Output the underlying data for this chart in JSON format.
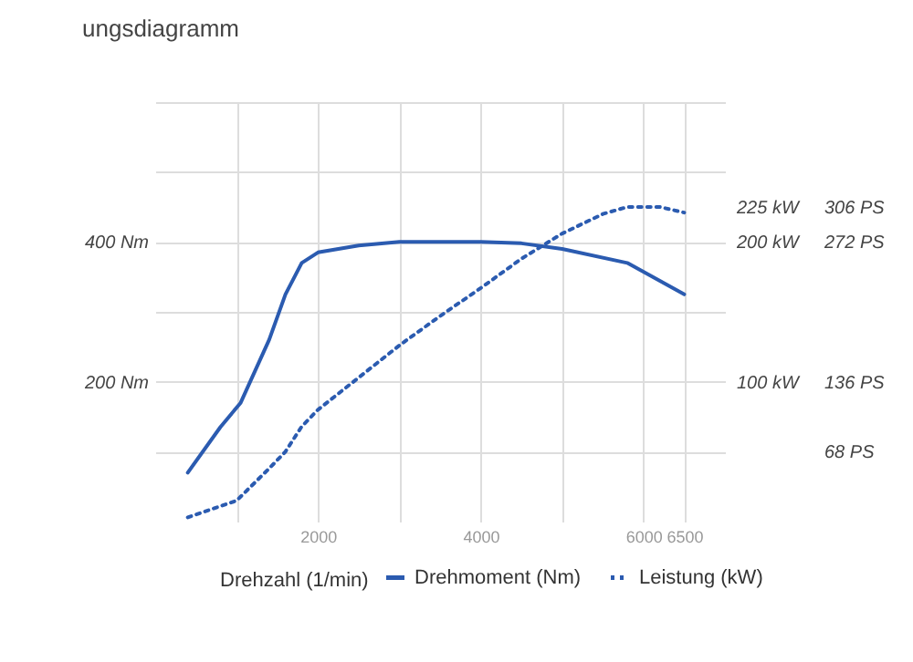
{
  "chart_data": {
    "type": "line",
    "title": "ungsdiagramm",
    "xlabel": "Drehzahl (1/min)",
    "xlim": [
      0,
      7000
    ],
    "xticks": [
      {
        "value": 1000,
        "label": null
      },
      2000,
      {
        "value": 3000,
        "label": null
      },
      4000,
      {
        "value": 5000,
        "label": null
      },
      6000,
      {
        "value": 6500,
        "label": "6500"
      }
    ],
    "ylim": [
      0,
      600
    ],
    "yticks": [
      {
        "value": 100,
        "label": null
      },
      {
        "value": 200,
        "label": "200 Nm"
      },
      {
        "value": 300,
        "label": null
      },
      {
        "value": 400,
        "label": "400 Nm"
      },
      {
        "value": 500,
        "label": null
      },
      {
        "value": 600,
        "label": null
      }
    ],
    "y2lim": [
      0,
      300
    ],
    "y2ticks": [
      {
        "value": 100,
        "label": "100 kW"
      },
      {
        "value": 200,
        "label": "200 kW"
      },
      {
        "value": 225,
        "label": "225 kW"
      }
    ],
    "y3lim": [
      0,
      408
    ],
    "y3ticks": [
      {
        "value": 68,
        "label": "68 PS"
      },
      {
        "value": 136,
        "label": "136 PS"
      },
      {
        "value": 272,
        "label": "272 PS"
      },
      {
        "value": 306,
        "label": "306 PS"
      }
    ],
    "grid": true,
    "legend": "bottom",
    "series": [
      {
        "name": "Drehmoment (Nm)",
        "color": "#2b5bb0",
        "line_style": "solid",
        "x": [
          400,
          800,
          1050,
          1400,
          1600,
          1800,
          2000,
          2500,
          3000,
          4000,
          4500,
          5000,
          5800,
          6500
        ],
        "values": [
          70,
          135,
          170,
          260,
          325,
          370,
          385,
          395,
          400,
          400,
          398,
          390,
          370,
          325
        ]
      },
      {
        "name": "Leistung (kW)",
        "color": "#2b5bb0",
        "line_style": "dotted",
        "axis": "y2",
        "x": [
          400,
          1000,
          1400,
          1600,
          1800,
          2000,
          2500,
          3000,
          3500,
          4000,
          4500,
          5000,
          5500,
          5800,
          6200,
          6500
        ],
        "values": [
          3,
          15,
          38,
          50,
          68,
          80,
          103,
          126,
          147,
          167,
          188,
          206,
          220,
          225,
          225,
          221
        ]
      }
    ]
  }
}
